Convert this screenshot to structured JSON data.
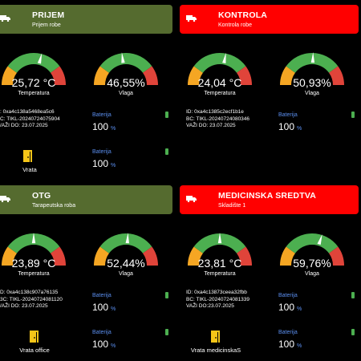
{
  "colors": {
    "header_green": "#556b2f",
    "header_red": "#ff0000",
    "gauge_orange": "#f5a623",
    "gauge_green": "#4caf50",
    "gauge_red": "#e0443a",
    "battery_label": "#5b8ff0",
    "battery_icon": "#4caf50"
  },
  "panels": [
    {
      "header": {
        "title": "PRIJEM",
        "subtitle": "Prijem robe",
        "color": "green",
        "icon": "truck-icon"
      },
      "temperature": {
        "value": "25,72 °C",
        "label": "Temperatura",
        "level": 0.58
      },
      "humidity": {
        "value": "46,55%",
        "label": "Vlaga",
        "level": 0.46
      },
      "device": {
        "id": ": 0xa4c138a5468ea5c6",
        "bc": "C: TIKL-20240724075904",
        "valid": "/AŽI DO: 23.07.2025"
      },
      "battery1": {
        "label": "Baterija",
        "value": "100",
        "unit": "%"
      },
      "battery2": {
        "label": "Baterija",
        "value": "100",
        "unit": "%"
      },
      "door": {
        "label": "Vrata",
        "icon": "door-icon"
      }
    },
    {
      "header": {
        "title": "KONTROLA",
        "subtitle": "Kontrola robe",
        "color": "red",
        "icon": "truck-icon"
      },
      "temperature": {
        "value": "24,04 °C",
        "label": "Temperatura",
        "level": 0.56
      },
      "humidity": {
        "value": "50,93%",
        "label": "Vlaga",
        "level": 0.51
      },
      "device": {
        "id": "ID: 0xa4c1385c2ecf1b1e",
        "bc": "BC: TIKL-20240724080346",
        "valid": "VAŽI DO: 23.07.2025"
      },
      "battery1": {
        "label": "Baterija",
        "value": "100",
        "unit": "%"
      }
    },
    {
      "header": {
        "title": "OTG",
        "subtitle": "Tarapeutska roba",
        "color": "green",
        "icon": "truck-icon"
      },
      "temperature": {
        "value": "23,89 °C",
        "label": "Temperatura",
        "level": 0.5
      },
      "humidity": {
        "value": "52,44%",
        "label": "Vlaga",
        "level": 0.52
      },
      "device": {
        "id": "D: 0xa4c138c907a76135",
        "bc": "3C: TIKL-20240724081120",
        "valid": "/AŽI DO: 23.07.2025"
      },
      "battery1": {
        "label": "Baterija",
        "value": "100",
        "unit": "%"
      },
      "battery2": {
        "label": "Baterija",
        "value": "100",
        "unit": "%"
      },
      "door": {
        "label": "Vrata office",
        "icon": "door-icon"
      }
    },
    {
      "header": {
        "title": "MEDICINSKA SREDTVA",
        "subtitle": "Skladište 1",
        "color": "red",
        "icon": "truck-icon"
      },
      "temperature": {
        "value": "23,81 °C",
        "label": "Temperatura",
        "level": 0.5
      },
      "humidity": {
        "value": "59,76%",
        "label": "Vlaga",
        "level": 0.6
      },
      "device": {
        "id": "ID: 0xa4c13873ceea32fbb",
        "bc": "BC: TIKL-20240724081339",
        "valid": "VAŽI DO:23.07.2025"
      },
      "battery1": {
        "label": "Baterija",
        "value": "100",
        "unit": "%"
      },
      "battery2": {
        "label": "Baterija",
        "value": "100",
        "unit": "%"
      },
      "door": {
        "label": "Vrata medicinskaS",
        "icon": "door-icon"
      }
    }
  ]
}
